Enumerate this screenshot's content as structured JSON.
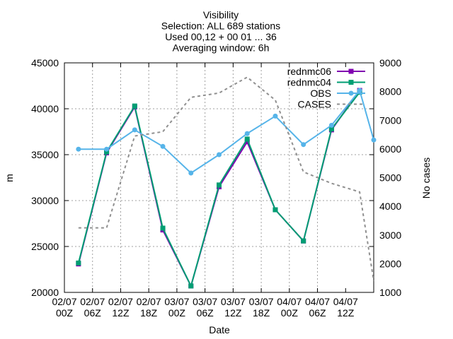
{
  "chart_data": {
    "type": "line",
    "title_lines": [
      "Visibility",
      "Selection: ALL    689 stations",
      "Used 00,12 + 00 01 ... 36",
      "Averaging window:  6h"
    ],
    "xlabel": "Date",
    "ylabel": "m",
    "y2label": "No cases",
    "ylim": [
      20000,
      45000
    ],
    "y2lim": [
      1000,
      9000
    ],
    "yticks": [
      20000,
      25000,
      30000,
      35000,
      40000,
      45000
    ],
    "y2ticks": [
      1000,
      2000,
      3000,
      4000,
      5000,
      6000,
      7000,
      8000,
      9000
    ],
    "xticks": [
      {
        "l1": "02/07",
        "l2": "00Z"
      },
      {
        "l1": "02/07",
        "l2": "06Z"
      },
      {
        "l1": "02/07",
        "l2": "12Z"
      },
      {
        "l1": "02/07",
        "l2": "18Z"
      },
      {
        "l1": "03/07",
        "l2": "00Z"
      },
      {
        "l1": "03/07",
        "l2": "06Z"
      },
      {
        "l1": "03/07",
        "l2": "12Z"
      },
      {
        "l1": "03/07",
        "l2": "18Z"
      },
      {
        "l1": "04/07",
        "l2": "00Z"
      },
      {
        "l1": "04/07",
        "l2": "06Z"
      },
      {
        "l1": "04/07",
        "l2": "12Z"
      }
    ],
    "grid": true,
    "legend_position": "top-right",
    "x_hours": [
      3,
      9,
      15,
      21,
      27,
      33,
      39,
      45,
      51,
      57,
      63,
      66
    ],
    "series": [
      {
        "name": "rednmc06",
        "axis": "y",
        "color": "#8000b0",
        "marker": "square",
        "values": [
          23100,
          35200,
          40200,
          26800,
          20700,
          31500,
          36400,
          29000,
          25600,
          37700,
          42000,
          null
        ]
      },
      {
        "name": "rednmc04",
        "axis": "y",
        "color": "#009e73",
        "marker": "square",
        "values": [
          23200,
          35300,
          40300,
          27000,
          20700,
          31700,
          36700,
          29000,
          25600,
          37800,
          41800,
          null
        ]
      },
      {
        "name": "OBS",
        "axis": "y",
        "color": "#56b4e9",
        "marker": "circle",
        "values": [
          35600,
          35600,
          37700,
          35900,
          33000,
          35000,
          37300,
          39200,
          36100,
          38200,
          42000,
          36600
        ]
      },
      {
        "name": "CASES",
        "axis": "y2",
        "color": "#909090",
        "dashed": true,
        "hours": [
          3,
          9,
          15,
          21,
          27,
          33,
          39,
          45,
          51,
          57,
          63,
          66
        ],
        "values": [
          3250,
          3250,
          6450,
          6600,
          7800,
          7950,
          8500,
          7700,
          5200,
          4800,
          4500,
          1400
        ]
      }
    ]
  }
}
